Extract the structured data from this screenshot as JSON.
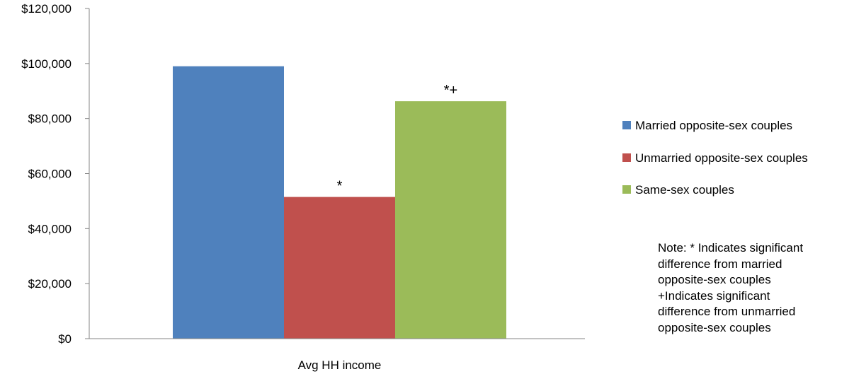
{
  "chart_data": {
    "type": "bar",
    "categories": [
      "Avg HH income"
    ],
    "series": [
      {
        "name": "Married  opposite-sex couples",
        "values": [
          99000
        ],
        "color": "#4F81BD",
        "marker": ""
      },
      {
        "name": "Unmarried opposite-sex couples",
        "values": [
          51500
        ],
        "color": "#C0504D",
        "marker": "*"
      },
      {
        "name": "Same-sex couples",
        "values": [
          86300
        ],
        "color": "#9BBB59",
        "marker": "*+"
      }
    ],
    "ylim": [
      0,
      120000
    ],
    "yticks": [
      0,
      20000,
      40000,
      60000,
      80000,
      100000,
      120000
    ],
    "ytick_labels": [
      "$0",
      "$20,000",
      "$40,000",
      "$60,000",
      "$80,000",
      "$100,000",
      "$120,000"
    ],
    "title": "",
    "xlabel": "",
    "ylabel": "",
    "grid": false,
    "legend": "right"
  },
  "note": {
    "lines": [
      "Note: * Indicates significant",
      "difference from married",
      "opposite-sex couples",
      "+Indicates significant",
      "difference from unmarried",
      "opposite-sex couples"
    ]
  }
}
